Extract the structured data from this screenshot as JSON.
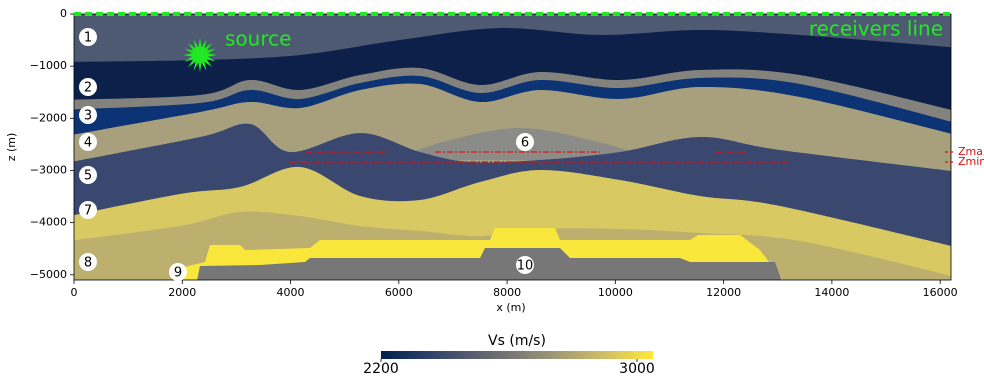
{
  "chart_data": {
    "type": "heatmap",
    "xlabel": "x (m)",
    "ylabel": "z (m)",
    "xlim": [
      0,
      16200
    ],
    "ylim": [
      -5100,
      0
    ],
    "xticks": [
      0,
      2000,
      4000,
      6000,
      8000,
      10000,
      12000,
      14000,
      16000
    ],
    "yticks": [
      0,
      {
        "value": -1000,
        "label": "−1000"
      },
      {
        "value": -2000,
        "label": "−2000"
      },
      {
        "value": -3000,
        "label": "−3000"
      },
      {
        "value": -4000,
        "label": "−4000"
      },
      {
        "value": -5000,
        "label": "−5000"
      }
    ],
    "annotations": [
      "source",
      "receivers line",
      "Zmax",
      "Zmin"
    ],
    "layer_labels": [
      "1",
      "2",
      "3",
      "4",
      "5",
      "6",
      "7",
      "8",
      "9",
      "10"
    ],
    "colorbar": {
      "label": "Vs (m/s)",
      "clim": [
        2200,
        3050
      ],
      "ticks": [
        2200,
        3000
      ],
      "colormap": "cividis"
    }
  }
}
